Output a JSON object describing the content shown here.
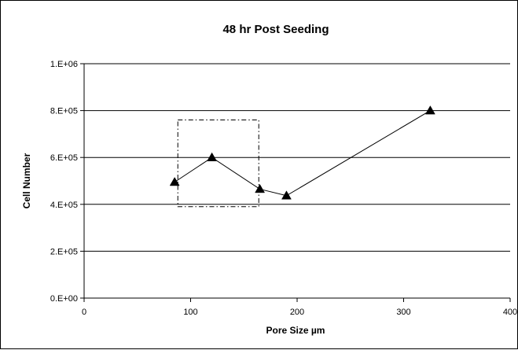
{
  "chart_data": {
    "type": "line",
    "title": "48 hr Post Seeding",
    "xlabel": "Pore Size µm",
    "ylabel": "Cell Number",
    "xlim": [
      0,
      400
    ],
    "ylim": [
      0,
      1000000
    ],
    "x_ticks": [
      {
        "value": 0,
        "label": "0"
      },
      {
        "value": 100,
        "label": "100"
      },
      {
        "value": 200,
        "label": "200"
      },
      {
        "value": 300,
        "label": "300"
      },
      {
        "value": 400,
        "label": "400"
      }
    ],
    "y_ticks": [
      {
        "value": 0,
        "label": "0.E+00"
      },
      {
        "value": 200000,
        "label": "2.E+05"
      },
      {
        "value": 400000,
        "label": "4.E+05"
      },
      {
        "value": 600000,
        "label": "6.E+05"
      },
      {
        "value": 800000,
        "label": "8.E+05"
      },
      {
        "value": 1000000,
        "label": "1.E+06"
      }
    ],
    "grid": "horizontal",
    "legend": "none",
    "series": [
      {
        "marker": "triangle",
        "color": "#000000",
        "x": [
          85,
          120,
          165,
          190,
          325
        ],
        "y": [
          495000,
          600000,
          465000,
          437000,
          800000
        ]
      }
    ],
    "annotations": [
      {
        "type": "dash-dot-rectangle",
        "x_range": [
          88,
          164
        ],
        "y_range": [
          390000,
          760000
        ]
      }
    ]
  }
}
